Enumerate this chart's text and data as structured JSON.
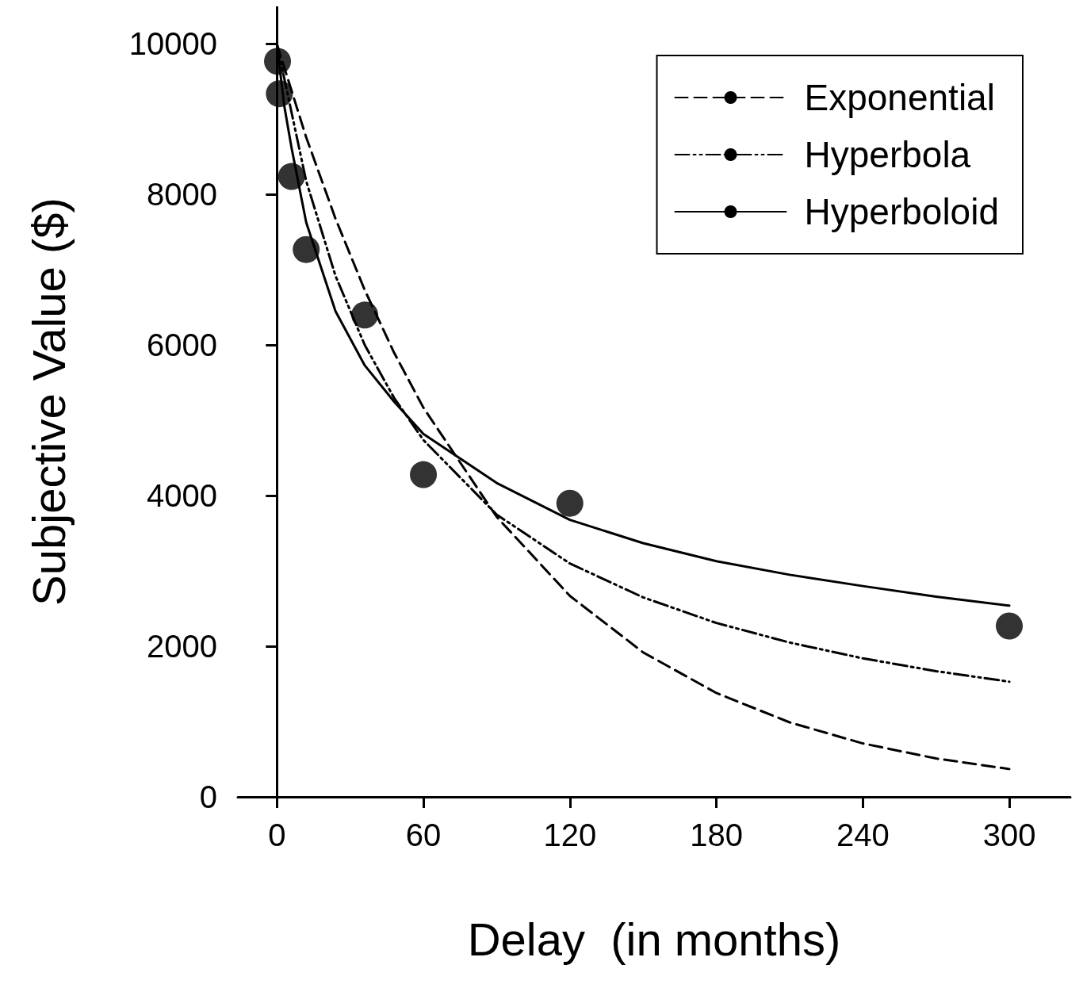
{
  "chart_data": {
    "type": "line",
    "xlabel": "Delay  (in months)",
    "ylabel": "Subjective Value ($)",
    "xlim": [
      -16,
      325
    ],
    "ylim": [
      0,
      10500
    ],
    "xticks": [
      0,
      60,
      120,
      180,
      240,
      300
    ],
    "yticks": [
      0,
      2000,
      4000,
      6000,
      8000,
      10000
    ],
    "legend": "top right",
    "series": [
      {
        "type": "scatter",
        "marker": "circle",
        "color": "#000000",
        "x": [
          0.25,
          1,
          6,
          12,
          36,
          60,
          120,
          300
        ],
        "values": [
          9770,
          9340,
          8240,
          7270,
          6400,
          4280,
          3900,
          2270
        ]
      },
      {
        "name": "Exponential",
        "line_style": "dashed",
        "marker": "none",
        "color": "#000000",
        "x": [
          0,
          12,
          24,
          36,
          48,
          60,
          90,
          120,
          150,
          180,
          210,
          240,
          270,
          300
        ],
        "values": [
          10000,
          8760,
          7680,
          6730,
          5900,
          5170,
          3720,
          2670,
          1920,
          1380,
          990,
          710,
          510,
          370
        ]
      },
      {
        "name": "Hyperbola",
        "line_style": "dashdotdot",
        "marker": "none",
        "color": "#000000",
        "x": [
          0,
          12,
          24,
          36,
          48,
          60,
          90,
          120,
          150,
          180,
          210,
          240,
          270,
          300
        ],
        "values": [
          10000,
          8180,
          6920,
          6000,
          5300,
          4740,
          3750,
          3100,
          2650,
          2310,
          2050,
          1840,
          1670,
          1530
        ]
      },
      {
        "name": "Hyperboloid",
        "line_style": "solid",
        "marker": "none",
        "color": "#000000",
        "x": [
          0,
          3,
          6,
          12,
          24,
          36,
          48,
          60,
          90,
          120,
          150,
          180,
          210,
          240,
          270,
          300
        ],
        "values": [
          10000,
          9180,
          8620,
          7630,
          6450,
          5730,
          5250,
          4820,
          4170,
          3680,
          3370,
          3130,
          2950,
          2800,
          2660,
          2540
        ]
      }
    ]
  }
}
